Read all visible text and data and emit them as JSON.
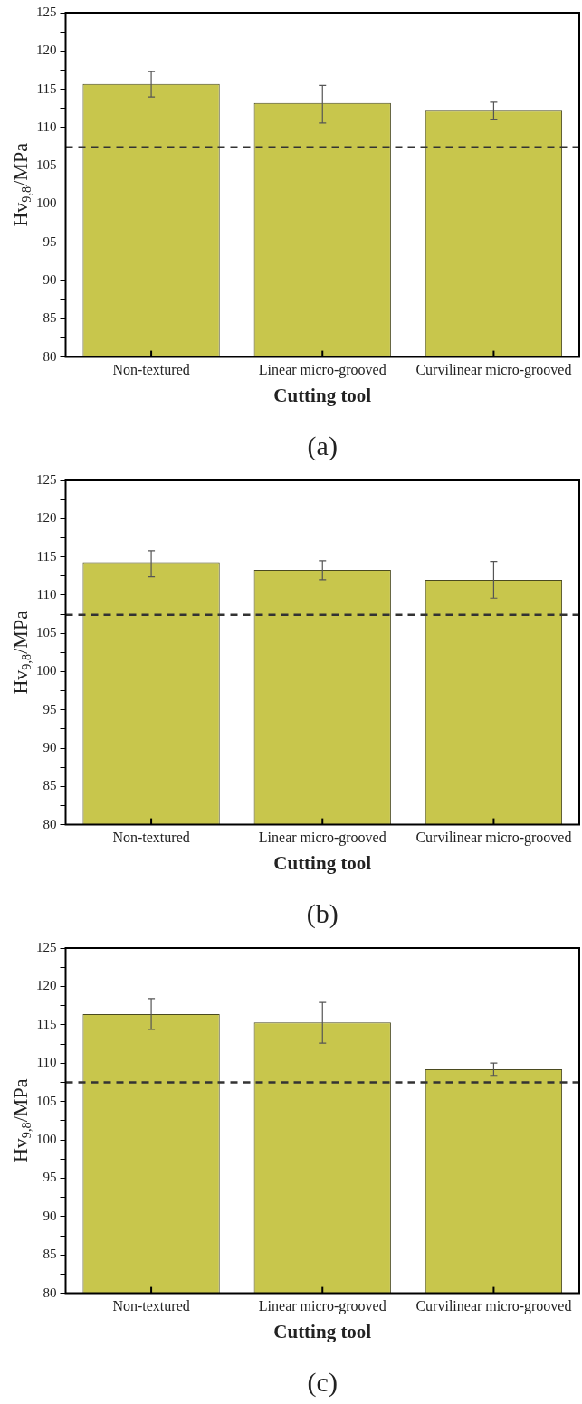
{
  "chart_data": [
    {
      "type": "bar",
      "xlabel": "Cutting tool",
      "ylabel": "Hv$_{9,8}$/MPa",
      "categories": [
        "Non-textured",
        "Linear micro-grooved",
        "Curvilinear micro-grooved"
      ],
      "values": [
        115.7,
        113.2,
        112.2
      ],
      "errors": [
        [
          114.0,
          117.3
        ],
        [
          110.6,
          115.5
        ],
        [
          111.0,
          113.3
        ]
      ],
      "color": "#c8c64c",
      "ylim": [
        80,
        125
      ],
      "yticks": [
        80,
        {
          "value": 82.5,
          "label": null
        },
        85,
        {
          "value": 87.5,
          "label": null
        },
        90,
        {
          "value": 92.5,
          "label": null
        },
        95,
        {
          "value": 97.5,
          "label": null
        },
        100,
        {
          "value": 102.5,
          "label": null
        },
        105,
        {
          "value": 107.5,
          "label": null
        },
        110,
        {
          "value": 112.5,
          "label": null
        },
        115,
        {
          "value": 117.5,
          "label": null
        },
        120,
        {
          "value": 122.5,
          "label": null
        },
        125
      ],
      "ref_lines": [
        {
          "axis": "y",
          "value": 107.4,
          "color": "#333333",
          "line_style": "dashed"
        }
      ],
      "annotations": [
        "(a)"
      ],
      "legend": false
    },
    {
      "type": "bar",
      "xlabel": "Cutting tool",
      "ylabel": "Hv$_{9,8}$/MPa",
      "categories": [
        "Non-textured",
        "Linear micro-grooved",
        "Curvilinear micro-grooved"
      ],
      "values": [
        114.3,
        113.3,
        112.0
      ],
      "errors": [
        [
          112.4,
          115.8
        ],
        [
          112.0,
          114.5
        ],
        [
          109.6,
          114.4
        ]
      ],
      "color": "#c8c64c",
      "ylim": [
        80,
        125
      ],
      "yticks": [
        80,
        {
          "value": 82.5,
          "label": null
        },
        85,
        {
          "value": 87.5,
          "label": null
        },
        90,
        {
          "value": 92.5,
          "label": null
        },
        95,
        {
          "value": 97.5,
          "label": null
        },
        100,
        {
          "value": 102.5,
          "label": null
        },
        105,
        {
          "value": 107.5,
          "label": null
        },
        110,
        {
          "value": 112.5,
          "label": null
        },
        115,
        {
          "value": 117.5,
          "label": null
        },
        120,
        {
          "value": 122.5,
          "label": null
        },
        125
      ],
      "ref_lines": [
        {
          "axis": "y",
          "value": 107.4,
          "color": "#333333",
          "line_style": "dashed"
        }
      ],
      "annotations": [
        "(b)"
      ],
      "legend": false
    },
    {
      "type": "bar",
      "xlabel": "Cutting tool",
      "ylabel": "Hv$_{9,8}$/MPa",
      "categories": [
        "Non-textured",
        "Linear micro-grooved",
        "Curvilinear micro-grooved"
      ],
      "values": [
        116.4,
        115.3,
        109.2
      ],
      "errors": [
        [
          114.4,
          118.4
        ],
        [
          112.6,
          117.9
        ],
        [
          108.4,
          110.0
        ]
      ],
      "color": "#c8c64c",
      "ylim": [
        80,
        125
      ],
      "yticks": [
        80,
        {
          "value": 82.5,
          "label": null
        },
        85,
        {
          "value": 87.5,
          "label": null
        },
        90,
        {
          "value": 92.5,
          "label": null
        },
        95,
        {
          "value": 97.5,
          "label": null
        },
        100,
        {
          "value": 102.5,
          "label": null
        },
        105,
        {
          "value": 107.5,
          "label": null
        },
        110,
        {
          "value": 112.5,
          "label": null
        },
        115,
        {
          "value": 117.5,
          "label": null
        },
        120,
        {
          "value": 122.5,
          "label": null
        },
        125
      ],
      "ref_lines": [
        {
          "axis": "y",
          "value": 107.5,
          "color": "#333333",
          "line_style": "dashed"
        }
      ],
      "annotations": [
        "(c)"
      ],
      "legend": false
    }
  ]
}
